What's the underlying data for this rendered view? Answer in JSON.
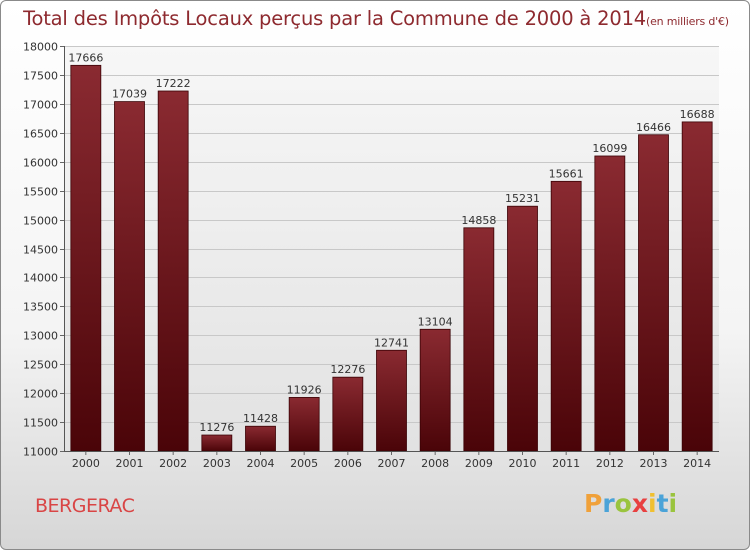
{
  "chart_data": {
    "type": "bar",
    "title": "Total des Impôts Locaux perçus par la Commune de 2000 à 2014",
    "unit_label": "(en milliers d'€)",
    "categories": [
      "2000",
      "2001",
      "2002",
      "2003",
      "2004",
      "2005",
      "2006",
      "2007",
      "2008",
      "2009",
      "2010",
      "2011",
      "2012",
      "2013",
      "2014"
    ],
    "values": [
      17666,
      17039,
      17222,
      11276,
      11428,
      11926,
      12276,
      12741,
      13104,
      14858,
      15231,
      15661,
      16099,
      16466,
      16688
    ],
    "ylim": [
      11000,
      18000
    ],
    "yticks": [
      11000,
      11500,
      12000,
      12500,
      13000,
      13500,
      14000,
      14500,
      15000,
      15500,
      16000,
      16500,
      17000,
      17500,
      18000
    ],
    "grid": true,
    "bar_color": "#7a1a20"
  },
  "commune": "BERGERAC",
  "logo": {
    "letters": [
      "P",
      "r",
      "o",
      "x",
      "i",
      "t",
      "i"
    ],
    "colors": [
      "#f0a13a",
      "#4aa3d8",
      "#9ac43e",
      "#e84040",
      "#f0c030",
      "#4aa3d8",
      "#9ac43e"
    ]
  }
}
